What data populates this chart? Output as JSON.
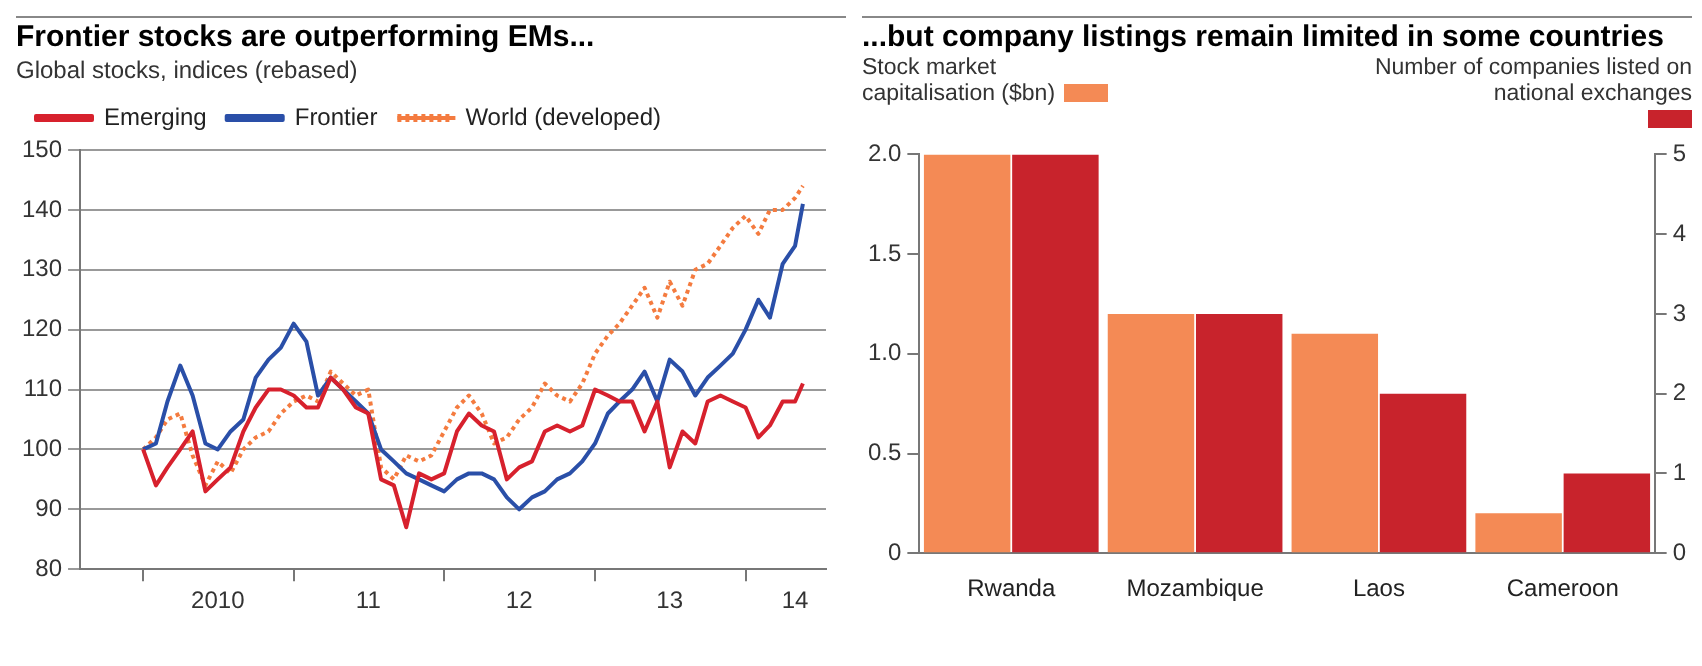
{
  "chart_data": [
    {
      "type": "line",
      "title": "Frontier stocks are outperforming EMs...",
      "subtitle": "Global stocks, indices (rebased)",
      "x": [
        "2010-01",
        "2010-02",
        "2010-03",
        "2010-04",
        "2010-05",
        "2010-06",
        "2010-07",
        "2010-08",
        "2010-09",
        "2010-10",
        "2010-11",
        "2010-12",
        "2011-01",
        "2011-02",
        "2011-03",
        "2011-04",
        "2011-05",
        "2011-06",
        "2011-07",
        "2011-08",
        "2011-09",
        "2011-10",
        "2011-11",
        "2011-12",
        "2012-01",
        "2012-02",
        "2012-03",
        "2012-04",
        "2012-05",
        "2012-06",
        "2012-07",
        "2012-08",
        "2012-09",
        "2012-10",
        "2012-11",
        "2012-12",
        "2013-01",
        "2013-02",
        "2013-03",
        "2013-04",
        "2013-05",
        "2013-06",
        "2013-07",
        "2013-08",
        "2013-09",
        "2013-10",
        "2013-11",
        "2013-12",
        "2014-01",
        "2014-02",
        "2014-03",
        "2014-04",
        "2014-05",
        "2014-05-20"
      ],
      "series": [
        {
          "name": "Emerging",
          "color": "#d7212d",
          "line_style": "solid",
          "values": [
            100,
            94,
            97,
            100,
            103,
            93,
            95,
            97,
            103,
            107,
            110,
            110,
            109,
            107,
            107,
            112,
            110,
            107,
            106,
            95,
            94,
            87,
            96,
            95,
            96,
            103,
            106,
            104,
            103,
            95,
            97,
            98,
            103,
            104,
            103,
            104,
            110,
            109,
            108,
            108,
            103,
            108,
            97,
            103,
            101,
            108,
            109,
            108,
            107,
            102,
            104,
            108,
            108,
            111
          ]
        },
        {
          "name": "Frontier",
          "color": "#2a4fa8",
          "line_style": "solid",
          "values": [
            100,
            101,
            108,
            114,
            109,
            101,
            100,
            103,
            105,
            112,
            115,
            117,
            121,
            118,
            109,
            112,
            110,
            108,
            106,
            100,
            98,
            96,
            95,
            94,
            93,
            95,
            96,
            96,
            95,
            92,
            90,
            92,
            93,
            95,
            96,
            98,
            101,
            106,
            108,
            110,
            113,
            108,
            115,
            113,
            109,
            112,
            114,
            116,
            120,
            125,
            122,
            131,
            134,
            141
          ]
        },
        {
          "name": "World (developed)",
          "color": "#f47b3f",
          "line_style": "dotted",
          "values": [
            100,
            102,
            105,
            106,
            99,
            94,
            98,
            96,
            100,
            102,
            103,
            106,
            108,
            109,
            108,
            113,
            111,
            109,
            110,
            97,
            95,
            99,
            98,
            99,
            103,
            107,
            109,
            106,
            101,
            102,
            105,
            107,
            111,
            109,
            108,
            111,
            116,
            119,
            121,
            124,
            127,
            122,
            128,
            124,
            130,
            131,
            134,
            137,
            139,
            136,
            140,
            140,
            142,
            144
          ]
        }
      ],
      "xlim": [
        "2009-08-01",
        "2014-07-15"
      ],
      "xticks": [
        {
          "value": "2010-01-01",
          "label": null
        },
        {
          "value": "2010-07-01",
          "label": "2010"
        },
        {
          "value": "2011-01-01",
          "label": null
        },
        {
          "value": "2011-07-01",
          "label": "11"
        },
        {
          "value": "2012-01-01",
          "label": null
        },
        {
          "value": "2012-07-01",
          "label": "12"
        },
        {
          "value": "2013-01-01",
          "label": null
        },
        {
          "value": "2013-07-01",
          "label": "13"
        },
        {
          "value": "2014-01-01",
          "label": null
        },
        {
          "value": "2014-05-01",
          "label": "14"
        }
      ],
      "ylim": [
        80,
        150
      ],
      "yticks": [
        80,
        90,
        100,
        110,
        120,
        130,
        140,
        150
      ],
      "grid": "y",
      "legend": "top left",
      "marker": "none"
    },
    {
      "type": "bar",
      "title": "...but company listings remain limited in some countries",
      "categories": [
        "Rwanda",
        "Mozambique",
        "Laos",
        "Cameroon"
      ],
      "series": [
        {
          "color": "#f48a55",
          "values": [
            2.0,
            1.2,
            1.1,
            0.2
          ]
        },
        {
          "color": "#c8232c",
          "axis": "y2",
          "values": [
            5,
            3,
            2,
            1
          ]
        }
      ],
      "ylabel": "Stock market capitalisation ($bn)",
      "y2label": "Number of companies listed on national exchanges",
      "ylim": [
        0,
        2
      ],
      "yticks": [
        0,
        0.5,
        {
          "value": 1,
          "label": "1.0"
        },
        1.5,
        {
          "value": 2,
          "label": "2.0"
        }
      ],
      "y2lim": [
        0,
        5
      ],
      "y2ticks": [
        0,
        1,
        2,
        3,
        4,
        5
      ]
    }
  ]
}
